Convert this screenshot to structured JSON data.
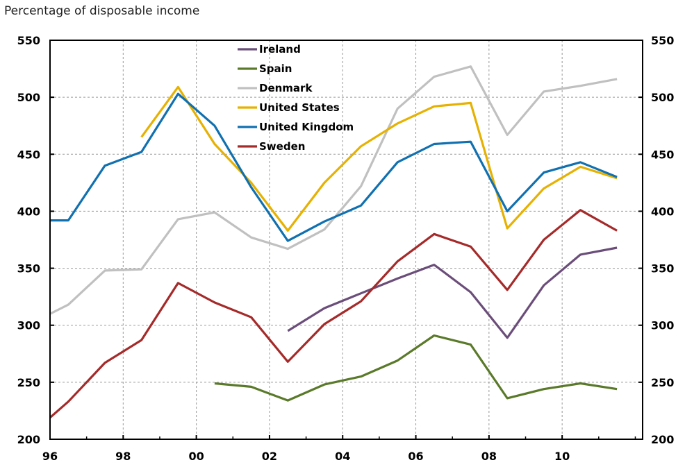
{
  "chart_data": {
    "type": "line",
    "title": "Percentage of disposable income",
    "ylim": [
      200,
      550
    ],
    "yticks": [
      200,
      250,
      300,
      350,
      400,
      450,
      500,
      550
    ],
    "xlim": [
      1996,
      2012.2
    ],
    "xticks": [
      {
        "value": 1996,
        "label": "96"
      },
      {
        "value": 1998,
        "label": "98"
      },
      {
        "value": 2000,
        "label": "00"
      },
      {
        "value": 2002,
        "label": "02"
      },
      {
        "value": 2004,
        "label": "04"
      },
      {
        "value": 2006,
        "label": "06"
      },
      {
        "value": 2008,
        "label": "08"
      },
      {
        "value": 2010,
        "label": "10"
      }
    ],
    "grid": true,
    "legend_position": "top-center",
    "series": [
      {
        "name": "Ireland",
        "color": "#6b4d7a",
        "points": [
          [
            2002.5,
            295
          ],
          [
            2003.5,
            315
          ],
          [
            2004.5,
            328
          ],
          [
            2005.5,
            341
          ],
          [
            2006.5,
            353
          ],
          [
            2007.5,
            329
          ],
          [
            2008.5,
            289
          ],
          [
            2009.5,
            335
          ],
          [
            2010.5,
            362
          ],
          [
            2011.5,
            368
          ]
        ]
      },
      {
        "name": "Spain",
        "color": "#5a7a2a",
        "points": [
          [
            2000.5,
            249
          ],
          [
            2001.5,
            246
          ],
          [
            2002.5,
            234
          ],
          [
            2003.5,
            248
          ],
          [
            2004.5,
            255
          ],
          [
            2005.5,
            269
          ],
          [
            2006.5,
            291
          ],
          [
            2007.5,
            283
          ],
          [
            2008.5,
            236
          ],
          [
            2009.5,
            244
          ],
          [
            2010.5,
            249
          ],
          [
            2011.5,
            244
          ]
        ]
      },
      {
        "name": "Denmark",
        "color": "#c0c0c0",
        "points": [
          [
            1996.0,
            310
          ],
          [
            1996.5,
            318
          ],
          [
            1997.5,
            348
          ],
          [
            1998.5,
            349
          ],
          [
            1999.5,
            393
          ],
          [
            2000.5,
            399
          ],
          [
            2001.5,
            377
          ],
          [
            2002.5,
            367
          ],
          [
            2003.5,
            384
          ],
          [
            2004.5,
            422
          ],
          [
            2005.5,
            490
          ],
          [
            2006.5,
            518
          ],
          [
            2007.5,
            527
          ],
          [
            2008.5,
            467
          ],
          [
            2009.5,
            505
          ],
          [
            2010.5,
            510
          ],
          [
            2011.5,
            516
          ]
        ]
      },
      {
        "name": "United States",
        "color": "#e6b100",
        "points": [
          [
            1998.5,
            465
          ],
          [
            1999.5,
            509
          ],
          [
            2000.5,
            459
          ],
          [
            2001.5,
            425
          ],
          [
            2002.5,
            383
          ],
          [
            2003.5,
            425
          ],
          [
            2004.5,
            457
          ],
          [
            2005.5,
            477
          ],
          [
            2006.5,
            492
          ],
          [
            2007.5,
            495
          ],
          [
            2008.5,
            385
          ],
          [
            2009.5,
            420
          ],
          [
            2010.5,
            439
          ],
          [
            2011.5,
            429
          ]
        ]
      },
      {
        "name": "United Kingdom",
        "color": "#1070b0",
        "points": [
          [
            1996.0,
            392
          ],
          [
            1996.5,
            392
          ],
          [
            1997.5,
            440
          ],
          [
            1998.5,
            452
          ],
          [
            1999.5,
            503
          ],
          [
            2000.5,
            475
          ],
          [
            2001.5,
            421
          ],
          [
            2002.5,
            374
          ],
          [
            2003.5,
            391
          ],
          [
            2004.5,
            405
          ],
          [
            2005.5,
            443
          ],
          [
            2006.5,
            459
          ],
          [
            2007.5,
            461
          ],
          [
            2008.5,
            400
          ],
          [
            2009.5,
            434
          ],
          [
            2010.5,
            443
          ],
          [
            2011.5,
            430
          ]
        ]
      },
      {
        "name": "Sweden",
        "color": "#a52a2a",
        "points": [
          [
            1996.0,
            219
          ],
          [
            1996.5,
            233
          ],
          [
            1997.5,
            267
          ],
          [
            1998.5,
            287
          ],
          [
            1999.5,
            337
          ],
          [
            2000.5,
            320
          ],
          [
            2001.5,
            307
          ],
          [
            2002.5,
            268
          ],
          [
            2003.5,
            301
          ],
          [
            2004.5,
            321
          ],
          [
            2005.5,
            356
          ],
          [
            2006.5,
            380
          ],
          [
            2007.5,
            369
          ],
          [
            2008.5,
            331
          ],
          [
            2009.5,
            375
          ],
          [
            2010.5,
            401
          ],
          [
            2011.5,
            383
          ]
        ]
      }
    ]
  }
}
